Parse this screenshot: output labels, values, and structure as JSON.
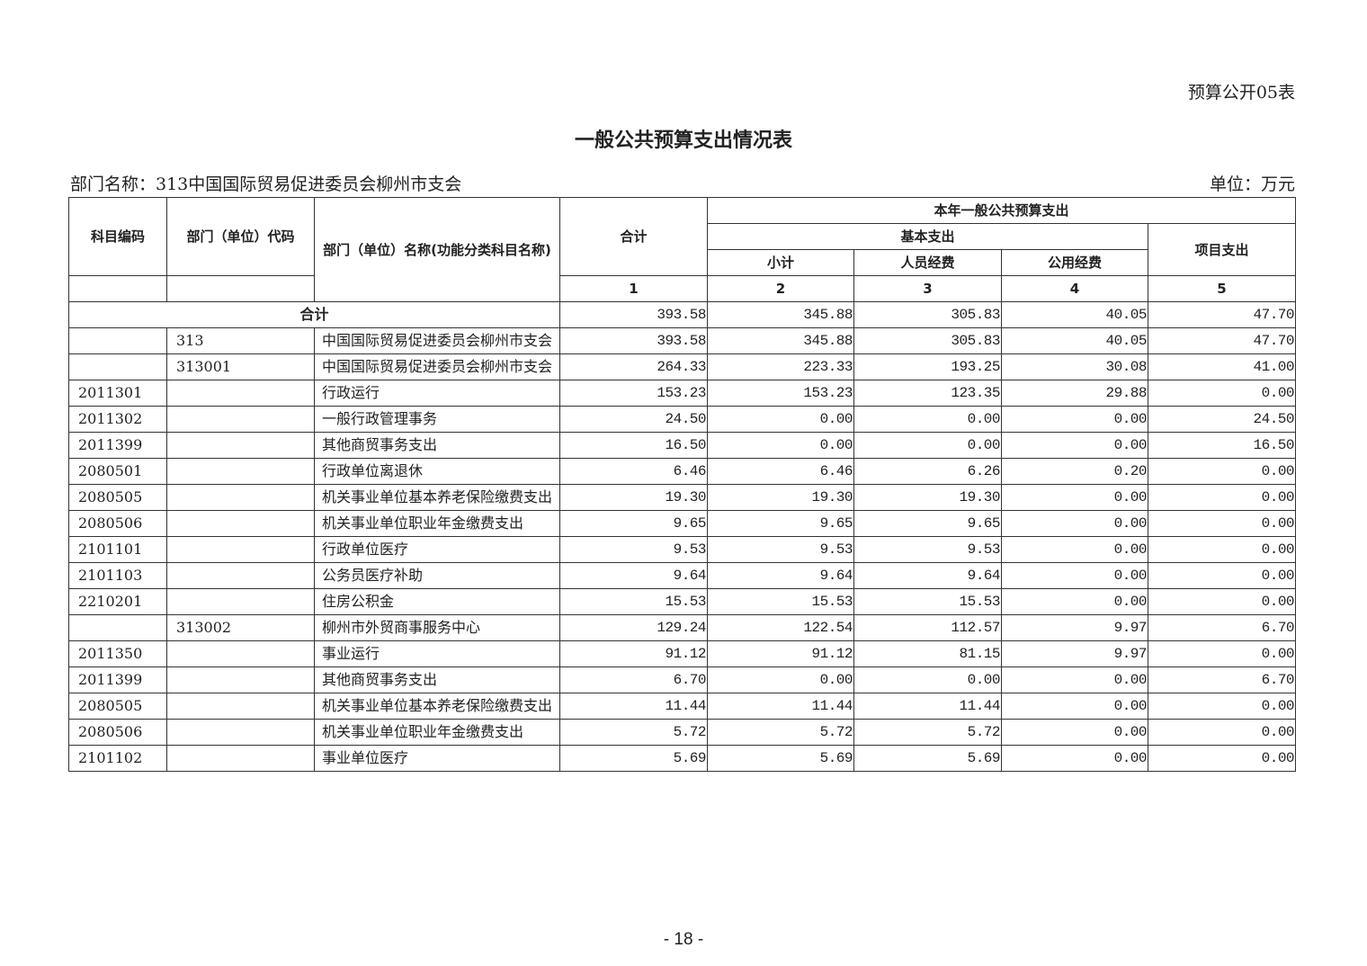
{
  "form_no": "预算公开05表",
  "title": "一般公共预算支出情况表",
  "department": "部门名称：313中国国际贸易促进委员会柳州市支会",
  "unit": "单位：万元",
  "headers": {
    "subject_code": "科目编码",
    "dept_code": "部门（单位）代码",
    "dept_name": "部门（单位）名称(功能分类科目名称)",
    "total": "合计",
    "current_year": "本年一般公共预算支出",
    "basic": "基本支出",
    "subtotal": "小计",
    "personnel": "人员经费",
    "public": "公用经费",
    "project": "项目支出",
    "col_nums": [
      "1",
      "2",
      "3",
      "4",
      "5"
    ]
  },
  "total_row": {
    "label": "合计",
    "values": [
      "393.58",
      "345.88",
      "305.83",
      "40.05",
      "47.70"
    ]
  },
  "rows": [
    {
      "code": "",
      "dept": "313",
      "name": "中国国际贸易促进委员会柳州市支会",
      "values": [
        "393.58",
        "345.88",
        "305.83",
        "40.05",
        "47.70"
      ]
    },
    {
      "code": "",
      "dept": "313001",
      "name": "中国国际贸易促进委员会柳州市支会",
      "values": [
        "264.33",
        "223.33",
        "193.25",
        "30.08",
        "41.00"
      ]
    },
    {
      "code": "2011301",
      "dept": "",
      "name": "行政运行",
      "values": [
        "153.23",
        "153.23",
        "123.35",
        "29.88",
        "0.00"
      ]
    },
    {
      "code": "2011302",
      "dept": "",
      "name": "一般行政管理事务",
      "values": [
        "24.50",
        "0.00",
        "0.00",
        "0.00",
        "24.50"
      ]
    },
    {
      "code": "2011399",
      "dept": "",
      "name": "其他商贸事务支出",
      "values": [
        "16.50",
        "0.00",
        "0.00",
        "0.00",
        "16.50"
      ]
    },
    {
      "code": "2080501",
      "dept": "",
      "name": "行政单位离退休",
      "values": [
        "6.46",
        "6.46",
        "6.26",
        "0.20",
        "0.00"
      ]
    },
    {
      "code": "2080505",
      "dept": "",
      "name": "机关事业单位基本养老保险缴费支出",
      "values": [
        "19.30",
        "19.30",
        "19.30",
        "0.00",
        "0.00"
      ]
    },
    {
      "code": "2080506",
      "dept": "",
      "name": "机关事业单位职业年金缴费支出",
      "values": [
        "9.65",
        "9.65",
        "9.65",
        "0.00",
        "0.00"
      ]
    },
    {
      "code": "2101101",
      "dept": "",
      "name": "行政单位医疗",
      "values": [
        "9.53",
        "9.53",
        "9.53",
        "0.00",
        "0.00"
      ]
    },
    {
      "code": "2101103",
      "dept": "",
      "name": "公务员医疗补助",
      "values": [
        "9.64",
        "9.64",
        "9.64",
        "0.00",
        "0.00"
      ]
    },
    {
      "code": "2210201",
      "dept": "",
      "name": "住房公积金",
      "values": [
        "15.53",
        "15.53",
        "15.53",
        "0.00",
        "0.00"
      ]
    },
    {
      "code": "",
      "dept": "313002",
      "name": "柳州市外贸商事服务中心",
      "values": [
        "129.24",
        "122.54",
        "112.57",
        "9.97",
        "6.70"
      ]
    },
    {
      "code": "2011350",
      "dept": "",
      "name": "事业运行",
      "values": [
        "91.12",
        "91.12",
        "81.15",
        "9.97",
        "0.00"
      ]
    },
    {
      "code": "2011399",
      "dept": "",
      "name": "其他商贸事务支出",
      "values": [
        "6.70",
        "0.00",
        "0.00",
        "0.00",
        "6.70"
      ]
    },
    {
      "code": "2080505",
      "dept": "",
      "name": "机关事业单位基本养老保险缴费支出",
      "values": [
        "11.44",
        "11.44",
        "11.44",
        "0.00",
        "0.00"
      ]
    },
    {
      "code": "2080506",
      "dept": "",
      "name": "机关事业单位职业年金缴费支出",
      "values": [
        "5.72",
        "5.72",
        "5.72",
        "0.00",
        "0.00"
      ]
    },
    {
      "code": "2101102",
      "dept": "",
      "name": "事业单位医疗",
      "values": [
        "5.69",
        "5.69",
        "5.69",
        "0.00",
        "0.00"
      ]
    }
  ],
  "page_number": "- 18 -"
}
